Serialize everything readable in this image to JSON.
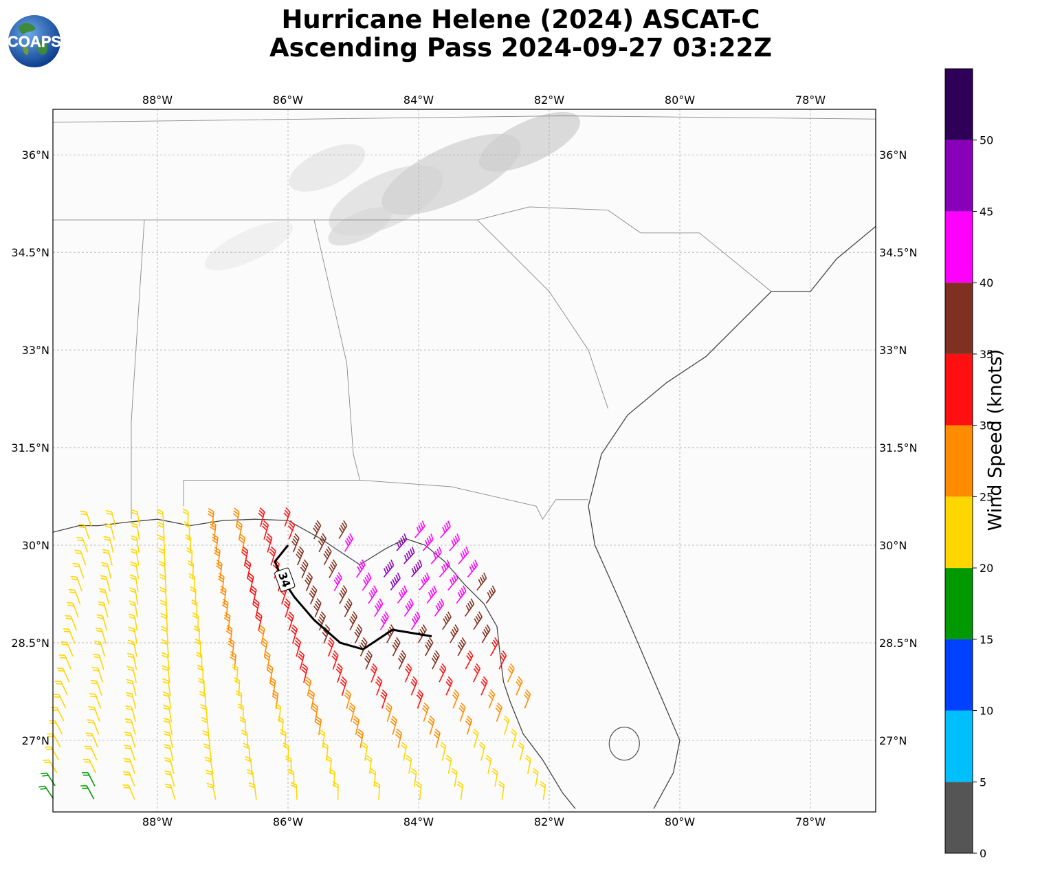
{
  "title_line1": "Hurricane Helene (2024) ASCAT-C",
  "title_line2": "Ascending Pass 2024-09-27 03:22Z",
  "logo": {
    "text": "COAPS",
    "icon": "globe-icon"
  },
  "map": {
    "extent": {
      "lon_min": -89.6,
      "lon_max": -77.0,
      "lat_min": 25.9,
      "lat_max": 36.7
    },
    "lon_ticks": [
      {
        "lon": -88,
        "label": "88°W"
      },
      {
        "lon": -86,
        "label": "86°W"
      },
      {
        "lon": -84,
        "label": "84°W"
      },
      {
        "lon": -82,
        "label": "82°W"
      },
      {
        "lon": -80,
        "label": "80°W"
      },
      {
        "lon": -78,
        "label": "78°W"
      }
    ],
    "lat_ticks": [
      {
        "lat": 36,
        "label": "36°N"
      },
      {
        "lat": 34.5,
        "label": "34.5°N"
      },
      {
        "lat": 33,
        "label": "33°N"
      },
      {
        "lat": 31.5,
        "label": "31.5°N"
      },
      {
        "lat": 30,
        "label": "30°N"
      },
      {
        "lat": 28.5,
        "label": "28.5°N"
      },
      {
        "lat": 27,
        "label": "27°N"
      }
    ],
    "contour_label": "34",
    "contour_34kt": [
      [
        -86.0,
        30.0
      ],
      [
        -86.2,
        29.75
      ],
      [
        -86.1,
        29.5
      ],
      [
        -85.9,
        29.2
      ],
      [
        -85.6,
        28.85
      ],
      [
        -85.2,
        28.5
      ],
      [
        -84.85,
        28.4
      ],
      [
        -84.4,
        28.7
      ],
      [
        -83.8,
        28.6
      ]
    ],
    "coastline": [
      [
        -89.6,
        30.2
      ],
      [
        -89.2,
        30.3
      ],
      [
        -88.9,
        30.3
      ],
      [
        -88.5,
        30.35
      ],
      [
        -88.0,
        30.4
      ],
      [
        -87.5,
        30.3
      ],
      [
        -87.0,
        30.38
      ],
      [
        -86.5,
        30.4
      ],
      [
        -86.0,
        30.38
      ],
      [
        -85.5,
        30.1
      ],
      [
        -85.2,
        29.9
      ],
      [
        -84.9,
        29.7
      ],
      [
        -84.5,
        29.95
      ],
      [
        -84.2,
        30.1
      ],
      [
        -83.9,
        30.0
      ],
      [
        -83.6,
        29.75
      ],
      [
        -83.3,
        29.4
      ],
      [
        -83.0,
        29.1
      ],
      [
        -82.8,
        28.75
      ],
      [
        -82.75,
        28.3
      ],
      [
        -82.7,
        27.9
      ],
      [
        -82.6,
        27.6
      ],
      [
        -82.4,
        27.1
      ],
      [
        -82.1,
        26.7
      ],
      [
        -81.8,
        26.2
      ],
      [
        -81.6,
        25.95
      ]
    ],
    "east_coast": [
      [
        -80.4,
        25.95
      ],
      [
        -80.1,
        26.5
      ],
      [
        -80.0,
        27.0
      ],
      [
        -80.3,
        27.7
      ],
      [
        -80.6,
        28.4
      ],
      [
        -80.9,
        29.1
      ],
      [
        -81.3,
        30.0
      ],
      [
        -81.4,
        30.6
      ],
      [
        -81.2,
        31.4
      ],
      [
        -80.8,
        32.0
      ],
      [
        -80.2,
        32.5
      ],
      [
        -79.6,
        32.9
      ],
      [
        -79.1,
        33.4
      ],
      [
        -78.6,
        33.9
      ],
      [
        -78.0,
        33.9
      ],
      [
        -77.6,
        34.4
      ],
      [
        -77.0,
        34.9
      ]
    ],
    "state_lines": [
      [
        [
          -89.6,
          35.0
        ],
        [
          -85.6,
          35.0
        ],
        [
          -84.3,
          35.0
        ],
        [
          -83.1,
          35.0
        ],
        [
          -82.3,
          35.2
        ],
        [
          -81.1,
          35.15
        ],
        [
          -80.6,
          34.8
        ],
        [
          -79.7,
          34.8
        ],
        [
          -78.6,
          33.9
        ]
      ],
      [
        [
          -88.2,
          35.0
        ],
        [
          -88.4,
          31.9
        ],
        [
          -88.4,
          30.4
        ]
      ],
      [
        [
          -85.6,
          35.0
        ],
        [
          -85.1,
          32.8
        ],
        [
          -85.0,
          31.4
        ],
        [
          -84.9,
          31.0
        ],
        [
          -87.6,
          31.0
        ],
        [
          -87.6,
          30.6
        ]
      ],
      [
        [
          -84.9,
          31.0
        ],
        [
          -83.5,
          30.9
        ],
        [
          -82.2,
          30.6
        ],
        [
          -82.1,
          30.4
        ],
        [
          -81.9,
          30.7
        ],
        [
          -81.4,
          30.7
        ]
      ],
      [
        [
          -83.1,
          35.0
        ],
        [
          -82.0,
          33.9
        ],
        [
          -81.4,
          33.0
        ],
        [
          -81.1,
          32.1
        ]
      ],
      [
        [
          -89.6,
          36.5
        ],
        [
          -81.8,
          36.6
        ],
        [
          -77.0,
          36.55
        ]
      ]
    ]
  },
  "wind_barbs": {
    "note": "scatterometer swath",
    "rows": 22,
    "cols": 15
  },
  "colorbar": {
    "label": "Wind Speed (knots)",
    "min": 0,
    "max": 55,
    "ticks": [
      0,
      5,
      10,
      15,
      20,
      25,
      30,
      35,
      40,
      45,
      50
    ],
    "bins": [
      {
        "from": 0,
        "to": 5,
        "color": "#555555"
      },
      {
        "from": 5,
        "to": 10,
        "color": "#00bfff"
      },
      {
        "from": 10,
        "to": 15,
        "color": "#0040ff"
      },
      {
        "from": 15,
        "to": 20,
        "color": "#009900"
      },
      {
        "from": 20,
        "to": 25,
        "color": "#ffd700"
      },
      {
        "from": 25,
        "to": 30,
        "color": "#ff8c00"
      },
      {
        "from": 30,
        "to": 35,
        "color": "#ff1010"
      },
      {
        "from": 35,
        "to": 40,
        "color": "#803020"
      },
      {
        "from": 40,
        "to": 45,
        "color": "#ff00ff"
      },
      {
        "from": 45,
        "to": 50,
        "color": "#8800b8"
      },
      {
        "from": 50,
        "to": 55,
        "color": "#2e0058"
      }
    ]
  }
}
